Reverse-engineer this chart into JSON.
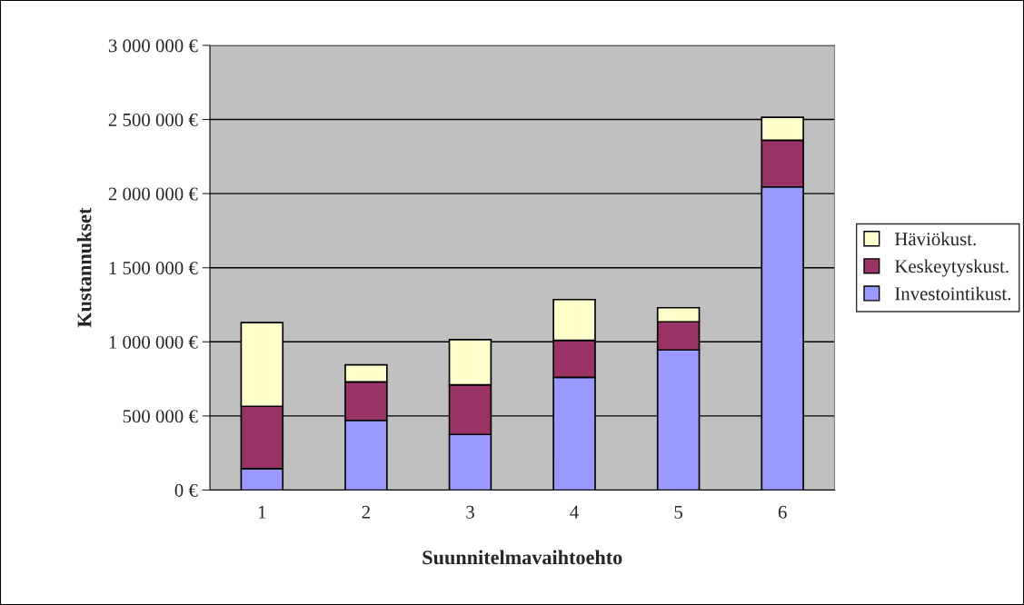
{
  "chart_data": {
    "type": "bar",
    "stacked": true,
    "xlabel": "Suunnitelmavaihtoehto",
    "ylabel": "Kustannukset",
    "categories": [
      "1",
      "2",
      "3",
      "4",
      "5",
      "6"
    ],
    "series": [
      {
        "name": "Investointikust.",
        "color": "#9999ff",
        "values": [
          145000,
          470000,
          375000,
          760000,
          945000,
          2045000
        ]
      },
      {
        "name": "Keskeytyskust.",
        "color": "#993366",
        "values": [
          420000,
          260000,
          335000,
          250000,
          190000,
          315000
        ]
      },
      {
        "name": "Häviökust.",
        "color": "#ffffcc",
        "values": [
          565000,
          115000,
          305000,
          275000,
          95000,
          155000
        ]
      }
    ],
    "ylim": [
      0,
      3000000
    ],
    "yticks": [
      {
        "value": 0,
        "label": "0 €"
      },
      {
        "value": 500000,
        "label": "500 000 €"
      },
      {
        "value": 1000000,
        "label": "1 000 000 €"
      },
      {
        "value": 1500000,
        "label": "1 500 000 €"
      },
      {
        "value": 2000000,
        "label": "2 000 000 €"
      },
      {
        "value": 2500000,
        "label": "2 500 000 €"
      },
      {
        "value": 3000000,
        "label": "3 000 000 €"
      }
    ],
    "grid": "y",
    "legend": "right"
  }
}
